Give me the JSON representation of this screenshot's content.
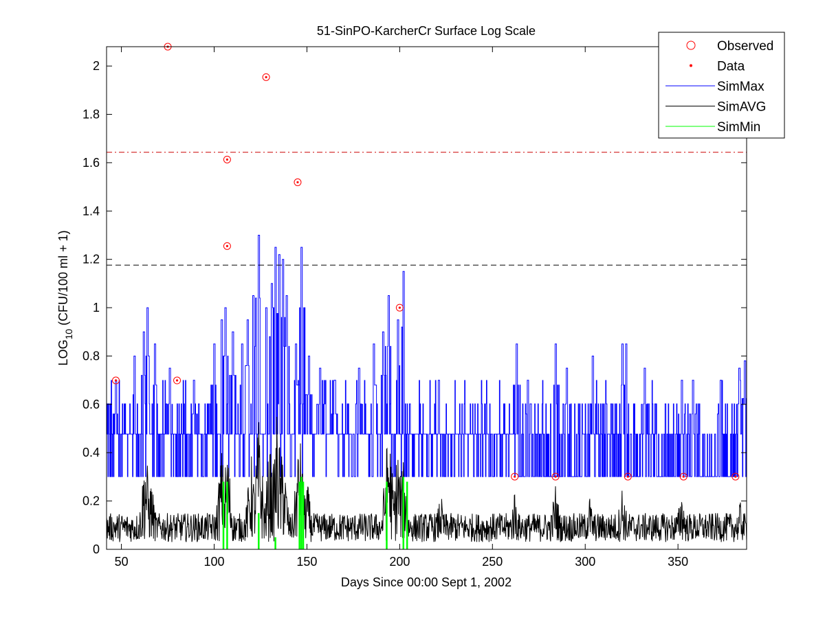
{
  "chart_data": {
    "type": "line",
    "title": "51-SinPO-KarcherCr Surface Log Scale",
    "xlabel": "Days Since 00:00 Sept 1, 2002",
    "ylabel_main": "LOG",
    "ylabel_sub": "10",
    "ylabel_rest": " (CFU/100 ml + 1)",
    "xlim": [
      42,
      387
    ],
    "ylim": [
      0,
      2.08
    ],
    "xticks": [
      50,
      100,
      150,
      200,
      250,
      300,
      350
    ],
    "xtick_labels": [
      "50",
      "100",
      "150",
      "200",
      "250",
      "300",
      "350"
    ],
    "yticks": [
      0,
      0.2,
      0.4,
      0.6,
      0.8,
      1,
      1.2,
      1.4,
      1.6,
      1.8,
      2
    ],
    "ytick_labels": [
      "0",
      "0.2",
      "0.4",
      "0.6",
      "0.8",
      "1",
      "1.2",
      "1.4",
      "1.6",
      "1.8",
      "2"
    ],
    "legend": {
      "position": "top-right",
      "entries": [
        {
          "label": "Observed",
          "marker": "circle",
          "color": "#ff0000"
        },
        {
          "label": "Data",
          "marker": "dot",
          "color": "#ff0000"
        },
        {
          "label": "SimMax",
          "marker": "line",
          "color": "#0000ff"
        },
        {
          "label": "SimAVG",
          "marker": "line",
          "color": "#000000"
        },
        {
          "label": "SimMin",
          "marker": "line",
          "color": "#00ff00"
        }
      ]
    },
    "observed": {
      "x": [
        47,
        75,
        80,
        107,
        107,
        128,
        145,
        200,
        262,
        284,
        323,
        353,
        381
      ],
      "y": [
        0.699,
        2.08,
        0.699,
        1.255,
        1.613,
        1.954,
        1.519,
        1.0,
        0.301,
        0.301,
        0.301,
        0.301,
        0.301
      ]
    },
    "reference_lines": [
      {
        "y": 1.643,
        "style": "dashdot",
        "color": "#cc0000"
      },
      {
        "y": 1.176,
        "style": "dashed",
        "color": "#000000"
      }
    ],
    "series": [
      {
        "name": "SimMax",
        "color": "#0000ff",
        "base": 0.301,
        "levels": [
          0.477,
          0.602,
          0.699,
          0.845
        ],
        "peaks": [
          {
            "x": 47,
            "y": 0.7
          },
          {
            "x": 57,
            "y": 0.8
          },
          {
            "x": 62,
            "y": 0.9
          },
          {
            "x": 64,
            "y": 1.0
          },
          {
            "x": 68,
            "y": 0.85
          },
          {
            "x": 76,
            "y": 0.75
          },
          {
            "x": 89,
            "y": 0.7
          },
          {
            "x": 100,
            "y": 0.85
          },
          {
            "x": 104,
            "y": 0.95
          },
          {
            "x": 106,
            "y": 1.0
          },
          {
            "x": 110,
            "y": 0.9
          },
          {
            "x": 115,
            "y": 0.85
          },
          {
            "x": 118,
            "y": 0.95
          },
          {
            "x": 121,
            "y": 1.05
          },
          {
            "x": 124,
            "y": 1.3
          },
          {
            "x": 128,
            "y": 1.0
          },
          {
            "x": 131,
            "y": 1.1
          },
          {
            "x": 133,
            "y": 1.25
          },
          {
            "x": 135,
            "y": 1.22
          },
          {
            "x": 137,
            "y": 1.2
          },
          {
            "x": 139,
            "y": 1.05
          },
          {
            "x": 144,
            "y": 0.85
          },
          {
            "x": 147,
            "y": 1.25
          },
          {
            "x": 151,
            "y": 0.8
          },
          {
            "x": 157,
            "y": 0.75
          },
          {
            "x": 165,
            "y": 0.7
          },
          {
            "x": 178,
            "y": 0.75
          },
          {
            "x": 186,
            "y": 0.85
          },
          {
            "x": 191,
            "y": 0.9
          },
          {
            "x": 194,
            "y": 1.05
          },
          {
            "x": 199,
            "y": 0.95
          },
          {
            "x": 202,
            "y": 1.15
          },
          {
            "x": 221,
            "y": 0.7
          },
          {
            "x": 263,
            "y": 0.85
          },
          {
            "x": 269,
            "y": 0.7
          },
          {
            "x": 284,
            "y": 0.85
          },
          {
            "x": 290,
            "y": 0.75
          },
          {
            "x": 304,
            "y": 0.8
          },
          {
            "x": 320,
            "y": 0.85
          },
          {
            "x": 322,
            "y": 0.85
          },
          {
            "x": 332,
            "y": 0.75
          },
          {
            "x": 352,
            "y": 0.7
          },
          {
            "x": 358,
            "y": 0.7
          },
          {
            "x": 373,
            "y": 0.7
          },
          {
            "x": 383,
            "y": 0.75
          },
          {
            "x": 386,
            "y": 0.78
          }
        ]
      },
      {
        "name": "SimAVG",
        "color": "#000000",
        "base": 0.03,
        "typical_high": 0.15,
        "peaks": [
          {
            "x": 63,
            "y": 0.44
          },
          {
            "x": 66,
            "y": 0.3
          },
          {
            "x": 104,
            "y": 0.42
          },
          {
            "x": 107,
            "y": 0.45
          },
          {
            "x": 120,
            "y": 0.4
          },
          {
            "x": 124,
            "y": 0.55
          },
          {
            "x": 130,
            "y": 0.45
          },
          {
            "x": 134,
            "y": 0.6
          },
          {
            "x": 137,
            "y": 0.45
          },
          {
            "x": 146,
            "y": 0.5
          },
          {
            "x": 150,
            "y": 0.3
          },
          {
            "x": 194,
            "y": 0.55
          },
          {
            "x": 199,
            "y": 0.45
          },
          {
            "x": 202,
            "y": 0.38
          },
          {
            "x": 222,
            "y": 0.24
          },
          {
            "x": 262,
            "y": 0.26
          },
          {
            "x": 284,
            "y": 0.28
          },
          {
            "x": 302,
            "y": 0.25
          },
          {
            "x": 320,
            "y": 0.28
          },
          {
            "x": 352,
            "y": 0.26
          },
          {
            "x": 384,
            "y": 0.22
          }
        ]
      },
      {
        "name": "SimMin",
        "color": "#00ff00",
        "base": 0.0,
        "spikes": [
          {
            "x": 105,
            "y": 0.28
          },
          {
            "x": 107,
            "y": 0.28
          },
          {
            "x": 124,
            "y": 0.15
          },
          {
            "x": 133,
            "y": 0.05
          },
          {
            "x": 146,
            "y": 0.28
          },
          {
            "x": 147,
            "y": 0.3
          },
          {
            "x": 148,
            "y": 0.28
          },
          {
            "x": 193,
            "y": 0.28
          },
          {
            "x": 202,
            "y": 0.3
          },
          {
            "x": 204,
            "y": 0.28
          }
        ]
      }
    ]
  }
}
